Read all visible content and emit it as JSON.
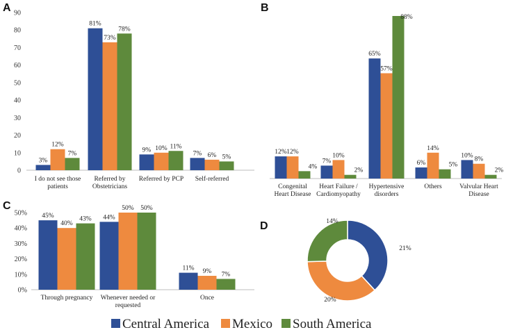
{
  "colors": {
    "Central America": "#2E4F96",
    "Mexico": "#EE8A3F",
    "South America": "#5E8A3C"
  },
  "legend": [
    "Central America",
    "Mexico",
    "South America"
  ],
  "chart_data": [
    {
      "panel": "A",
      "type": "bar",
      "categories": [
        "I do not see those patients",
        "Referred by Obstetricians",
        "Referred by PCP",
        "Self-referred"
      ],
      "series": [
        {
          "name": "Central America",
          "values": [
            3,
            81,
            9,
            7
          ],
          "labels": [
            "3%",
            "81%",
            "9%",
            "7%"
          ]
        },
        {
          "name": "Mexico",
          "values": [
            12,
            73,
            10,
            6
          ],
          "labels": [
            "12%",
            "73%",
            "10%",
            "6%"
          ]
        },
        {
          "name": "South America",
          "values": [
            7,
            78,
            11,
            5
          ],
          "labels": [
            "7%",
            "78%",
            "11%",
            "5%"
          ]
        }
      ],
      "ylim": [
        0,
        90
      ],
      "yticks": [
        "0",
        "10",
        "20",
        "30",
        "40",
        "50",
        "60",
        "70",
        "80",
        "90"
      ],
      "grid": false
    },
    {
      "panel": "B",
      "type": "bar",
      "categories": [
        "Congenital Heart Disease",
        "Heart Failure / Cardiomyopathy",
        "Hypertensive disorders",
        "Others",
        "Valvular Heart Disease"
      ],
      "series": [
        {
          "name": "Central America",
          "values": [
            12,
            7,
            65,
            6,
            10
          ],
          "labels": [
            "12%",
            "7%",
            "65%",
            "6%",
            "10%"
          ]
        },
        {
          "name": "Mexico",
          "values": [
            12,
            10,
            57,
            14,
            8
          ],
          "labels": [
            "12%",
            "10%",
            "57%",
            "14%",
            "8%"
          ]
        },
        {
          "name": "South America",
          "values": [
            4,
            2,
            88,
            5,
            2
          ],
          "labels": [
            "4%",
            "2%",
            "88%",
            "5%",
            "2%"
          ]
        }
      ],
      "ylim": [
        0,
        88
      ],
      "grid": false
    },
    {
      "panel": "C",
      "type": "bar",
      "categories": [
        "Through pregnancy",
        "Whenever needed or requested",
        "Once"
      ],
      "series": [
        {
          "name": "Central America",
          "values": [
            45,
            44,
            11
          ],
          "labels": [
            "45%",
            "44%",
            "11%"
          ]
        },
        {
          "name": "Mexico",
          "values": [
            40,
            50,
            9
          ],
          "labels": [
            "40%",
            "50%",
            "9%"
          ]
        },
        {
          "name": "South America",
          "values": [
            43,
            50,
            7
          ],
          "labels": [
            "43%",
            "50%",
            "7%"
          ]
        }
      ],
      "ylim": [
        0,
        50
      ],
      "yticks": [
        "0%",
        "10%",
        "20%",
        "30%",
        "40%",
        "50%"
      ],
      "grid": false
    },
    {
      "panel": "D",
      "type": "pie",
      "donut": true,
      "slices": [
        {
          "name": "Central America",
          "value": 21,
          "label": "21%"
        },
        {
          "name": "Mexico",
          "value": 20,
          "label": "20%"
        },
        {
          "name": "South America",
          "value": 14,
          "label": "14%"
        }
      ]
    }
  ]
}
